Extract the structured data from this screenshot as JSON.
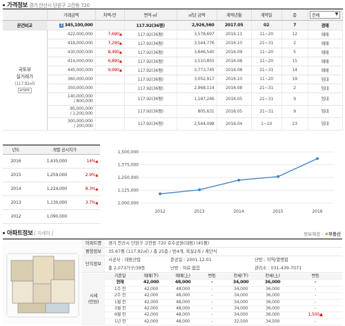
{
  "price_section": {
    "title": "가격정보",
    "location": "경기 안산시 단원구 고잔동 720",
    "headers": [
      "거래금액",
      "차액-만",
      "면적-㎡",
      "㎡당 금액",
      "계약년월",
      "계약일",
      "층"
    ],
    "select_value": "전체",
    "compare_label": "본건비교",
    "side_label_lines": [
      "국토부",
      "실거래가",
      "(117.92㎡)"
    ],
    "more_label": "more",
    "main_row": {
      "badge": "2",
      "amount": "345,100,000",
      "diff": "",
      "area": "117.92(36평)",
      "per_m2": "2,926,560",
      "ym": "2017.05",
      "day": "02",
      "floor": "7",
      "type": "경매"
    },
    "rows": [
      {
        "amount": "422,000,000",
        "diff": "7,690",
        "area": "117.92(36평)",
        "per_m2": "3,578,697",
        "ym": "2016.11",
        "day": "11~20",
        "floor": "12",
        "type": "매매"
      },
      {
        "amount": "418,000,000",
        "diff": "7,290",
        "area": "117.92(36평)",
        "per_m2": "3,544,776",
        "ym": "2016.10",
        "day": "21~31",
        "floor": "2",
        "type": "매매"
      },
      {
        "amount": "430,000,000",
        "diff": "8,490",
        "area": "117.92(36평)",
        "per_m2": "3,646,540",
        "ym": "2016.09",
        "day": "11~20",
        "floor": "5",
        "type": "매매"
      },
      {
        "amount": "414,000,000",
        "diff": "6,890",
        "area": "117.92(36평)",
        "per_m2": "3,510,855",
        "ym": "2016.08",
        "day": "11~20",
        "floor": "15",
        "type": "매매"
      },
      {
        "amount": "445,000,000",
        "diff": "9,990",
        "area": "117.92(36평)",
        "per_m2": "3,773,745",
        "ym": "2016.08",
        "day": "21~31",
        "floor": "14",
        "type": "매매"
      },
      {
        "amount": "360,000,000",
        "diff": "",
        "area": "117.92(36평)",
        "per_m2": "3,052,917",
        "ym": "2016.10",
        "day": "11~20",
        "floor": "19",
        "type": "임대"
      },
      {
        "amount": "350,000,000",
        "diff": "",
        "area": "117.92(36평)",
        "per_m2": "2,968,114",
        "ym": "2016.08",
        "day": "21~31",
        "floor": "2",
        "type": "임대"
      }
    ],
    "multi_rows": [
      {
        "amount_l1": "140,000,000",
        "amount_l2": "/ 800,000",
        "area": "117.92(36평)",
        "per_m2": "1,187,246",
        "ym": "2016.05",
        "day": "21~31",
        "floor": "9",
        "type": "임대"
      },
      {
        "amount_l1": "95,000,000",
        "amount_l2": "/ 1,200,000",
        "area": "117.92(36평)",
        "per_m2": "805,631",
        "ym": "2016.05",
        "day": "21~31",
        "floor": "9",
        "type": "임대"
      },
      {
        "amount_l1": "300,000,000",
        "amount_l2": "/ 200,000",
        "area": "117.92(36평)",
        "per_m2": "2,544,098",
        "ym": "2016.04",
        "day": "1~10",
        "floor": "23",
        "type": "임대"
      }
    ]
  },
  "official_section": {
    "headers": [
      "년도",
      "개별 공시지가"
    ],
    "rows": [
      {
        "year": "2016",
        "value": "1,435,000",
        "pct": "14%"
      },
      {
        "year": "2015",
        "value": "1,259,000",
        "pct": "2.9%"
      },
      {
        "year": "2014",
        "value": "1,224,000",
        "pct": "8.3%"
      },
      {
        "year": "2013",
        "value": "1,130,000",
        "pct": "3.7%"
      },
      {
        "year": "2012",
        "value": "1,090,000",
        "pct": ""
      }
    ]
  },
  "chart_data": {
    "type": "line",
    "x": [
      "2012",
      "2013",
      "2014",
      "2015",
      "2016"
    ],
    "series": [
      {
        "values": [
          1090000,
          1130000,
          1224000,
          1259000,
          1435000
        ]
      }
    ],
    "yticks": [
      "1,500,000",
      "1,375,000",
      "1,250,000",
      "1,125,000",
      "1,000,000"
    ],
    "ylim": [
      1000000,
      1500000
    ],
    "color": "#3a86c8",
    "grid": true
  },
  "apt_section": {
    "title": "아파트정보",
    "detail_label": "[ 자세히 ]",
    "source_label": "정보제공 -",
    "source_brand": "부동산",
    "rows": {
      "name_label": "아파트명",
      "name_value": "경기 안산시 단원구 고잔동 720 호수공원(대림) (45평)",
      "area_label": "평형정보",
      "area_value": "35.67평 (117.92㎡) / 총 25층 / 방4개, 욕실2개 / 계단식",
      "complex_label": "단지정보",
      "builder_label": "시공사 : 대림산업",
      "completed_label": "준공일 : 2001.12.01",
      "heating_label": "난방 : 지역/열병합",
      "households_label": "총 2,073가구/39동",
      "parking_label": "난방 : 자료 없음",
      "office_label": "관리소 : 031-439-7071"
    },
    "market_label_lines": [
      "시세",
      "(만원)"
    ],
    "market_headers": [
      "기준일",
      "매매(下)",
      "매매(上)",
      "변동",
      "전세(下)",
      "전세(上)",
      "변동"
    ],
    "market_rows": [
      {
        "when": "현재",
        "s_low": "42,000",
        "s_high": "48,000",
        "s_chg": "-",
        "j_low": "34,000",
        "j_high": "36,000",
        "j_chg": "-"
      },
      {
        "when": "1주 전",
        "s_low": "42,000",
        "s_high": "48,000",
        "s_chg": "-",
        "j_low": "34,000",
        "j_high": "36,000",
        "j_chg": "-"
      },
      {
        "when": "2주 전",
        "s_low": "42,000",
        "s_high": "48,000",
        "s_chg": "-",
        "j_low": "34,000",
        "j_high": "36,000",
        "j_chg": "-"
      },
      {
        "when": "1월 전",
        "s_low": "42,000",
        "s_high": "48,000",
        "s_chg": "-",
        "j_low": "34,000",
        "j_high": "36,000",
        "j_chg": "-"
      },
      {
        "when": "3월 전",
        "s_low": "42,000",
        "s_high": "48,000",
        "s_chg": "-",
        "j_low": "34,000",
        "j_high": "36,000",
        "j_chg": "-"
      },
      {
        "when": "6월 전",
        "s_low": "42,000",
        "s_high": "48,000",
        "s_chg": "-",
        "j_low": "34,000",
        "j_high": "36,000",
        "j_chg": "1,500▲"
      },
      {
        "when": "1년 전",
        "s_low": "42,000",
        "s_high": "48,000",
        "s_chg": "-",
        "j_low": "32,500",
        "j_high": "34,500",
        "j_chg": "-"
      }
    ]
  }
}
